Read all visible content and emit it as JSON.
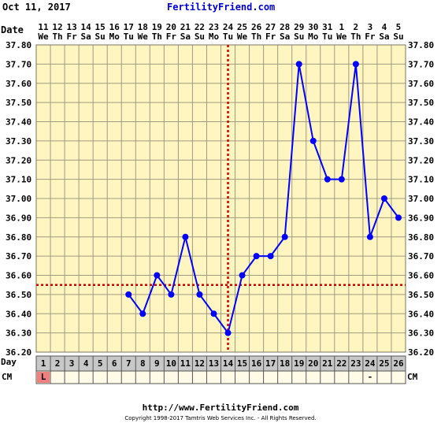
{
  "header": {
    "date": "Oct 11, 2017",
    "site_title": "FertilityFriend.com"
  },
  "footer": {
    "url": "http://www.FertilityFriend.com",
    "copyright": "Copyright 1998-2017 Tamtris Web Services Inc. - All Rights Reserved."
  },
  "labels": {
    "date_label": "Date",
    "day_label": "Day",
    "cm_label": "CM"
  },
  "colors": {
    "background": "#ffffff",
    "plot_bg": "#fff5c0",
    "grid": "#a09a80",
    "line": "#0000ff",
    "point": "#0000ff",
    "coverline": "#cc0000",
    "cycle_row": "#c8c8c8",
    "menses": "#f08080",
    "accent_text": "#0000cc"
  },
  "chart_data": {
    "type": "line",
    "title": "",
    "xlabel": "Day",
    "ylabel": "",
    "ylim": [
      36.2,
      37.8
    ],
    "ytick_step": 0.1,
    "ytick_labels": [
      "37.80",
      "37.70",
      "37.60",
      "37.50",
      "37.40",
      "37.30",
      "37.20",
      "37.10",
      "37.00",
      "36.90",
      "36.80",
      "36.70",
      "36.60",
      "36.50",
      "36.40",
      "36.30",
      "36.20"
    ],
    "dates": [
      "11",
      "12",
      "13",
      "14",
      "15",
      "16",
      "17",
      "18",
      "19",
      "20",
      "21",
      "22",
      "23",
      "24",
      "25",
      "26",
      "27",
      "28",
      "29",
      "30",
      "31",
      "1",
      "2",
      "3",
      "4",
      "5"
    ],
    "weekdays": [
      "We",
      "Th",
      "Fr",
      "Sa",
      "Su",
      "Mo",
      "Tu",
      "We",
      "Th",
      "Fr",
      "Sa",
      "Su",
      "Mo",
      "Tu",
      "We",
      "Th",
      "Fr",
      "Sa",
      "Su",
      "Mo",
      "Tu",
      "We",
      "Th",
      "Fr",
      "Sa",
      "Su"
    ],
    "cycle_days": [
      "1",
      "2",
      "3",
      "4",
      "5",
      "6",
      "7",
      "8",
      "9",
      "10",
      "11",
      "12",
      "13",
      "14",
      "15",
      "16",
      "17",
      "18",
      "19",
      "20",
      "21",
      "22",
      "23",
      "24",
      "25",
      "26"
    ],
    "temps": [
      null,
      null,
      null,
      null,
      null,
      null,
      36.5,
      36.4,
      36.6,
      36.5,
      36.8,
      36.5,
      36.4,
      36.3,
      36.6,
      36.7,
      36.7,
      36.8,
      37.7,
      37.3,
      37.1,
      37.1,
      37.7,
      36.8,
      37.0,
      36.9
    ],
    "coverline": 36.55,
    "ovulation_day": 14,
    "cm": [
      "L",
      "",
      "",
      "",
      "",
      "",
      "",
      "",
      "",
      "",
      "",
      "",
      "",
      "",
      "",
      "",
      "",
      "",
      "",
      "",
      "",
      "",
      "",
      "-",
      "",
      ""
    ],
    "cm_highlight_day": 1,
    "grid": true
  }
}
